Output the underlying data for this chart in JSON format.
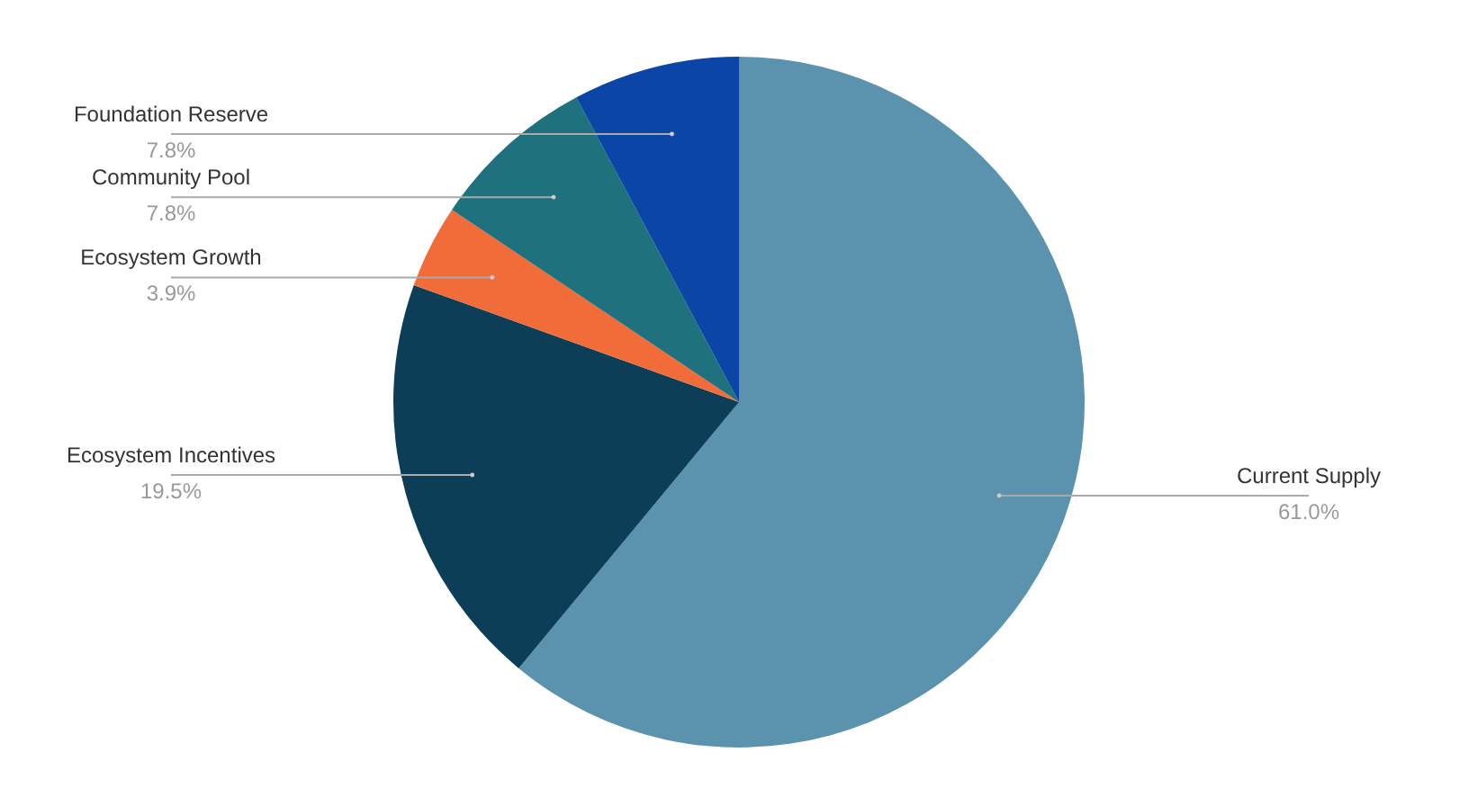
{
  "chart_data": {
    "type": "pie",
    "categories": [
      "Current Supply",
      "Ecosystem Incentives",
      "Ecosystem Growth",
      "Community Pool",
      "Foundation Reserve"
    ],
    "values": [
      61.0,
      19.5,
      3.9,
      7.8,
      7.8
    ],
    "colors": [
      "#5b93ae",
      "#0c3e58",
      "#f26c3a",
      "#1e717d",
      "#0b45a6"
    ],
    "value_labels": [
      "61.0%",
      "19.5%",
      "3.9%",
      "7.8%",
      "7.8%"
    ]
  }
}
